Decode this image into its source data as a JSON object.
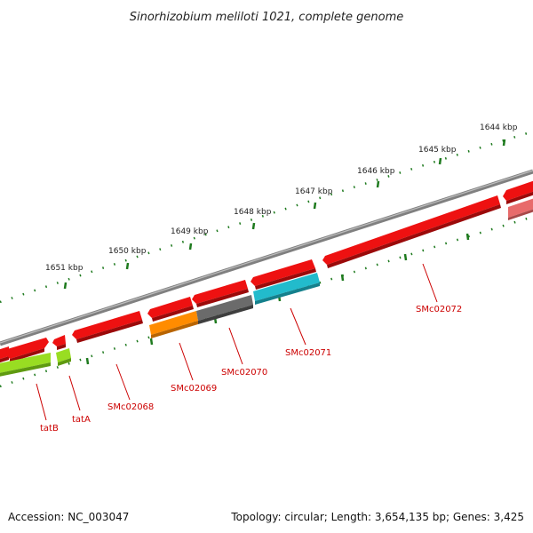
{
  "title": "Sinorhizobium meliloti 1021, complete genome",
  "footer": {
    "accession": "Accession: NC_003047",
    "summary": "Topology: circular; Length: 3,654,135 bp; Genes: 3,425"
  },
  "colors": {
    "backbone": "#808080",
    "ticks": "#1e7a1e",
    "red_gene": "#ee1111",
    "pink_gene": "#e86b6b",
    "lime_gene": "#99dd22",
    "orange_gene": "#ff8c00",
    "gray_gene": "#6b6b6b",
    "cyan_gene": "#22bbcc",
    "label": "#cc0000"
  },
  "scale": {
    "unit": "kbp",
    "labels": [
      "1644 kbp",
      "1645 kbp",
      "1646 kbp",
      "1647 kbp",
      "1648 kbp",
      "1649 kbp",
      "1650 kbp",
      "1651 kbp"
    ]
  },
  "gene_labels": [
    "SMc02072",
    "SMc02071",
    "SMc02070",
    "SMc02069",
    "SMc02068",
    "tatA",
    "tatB"
  ]
}
